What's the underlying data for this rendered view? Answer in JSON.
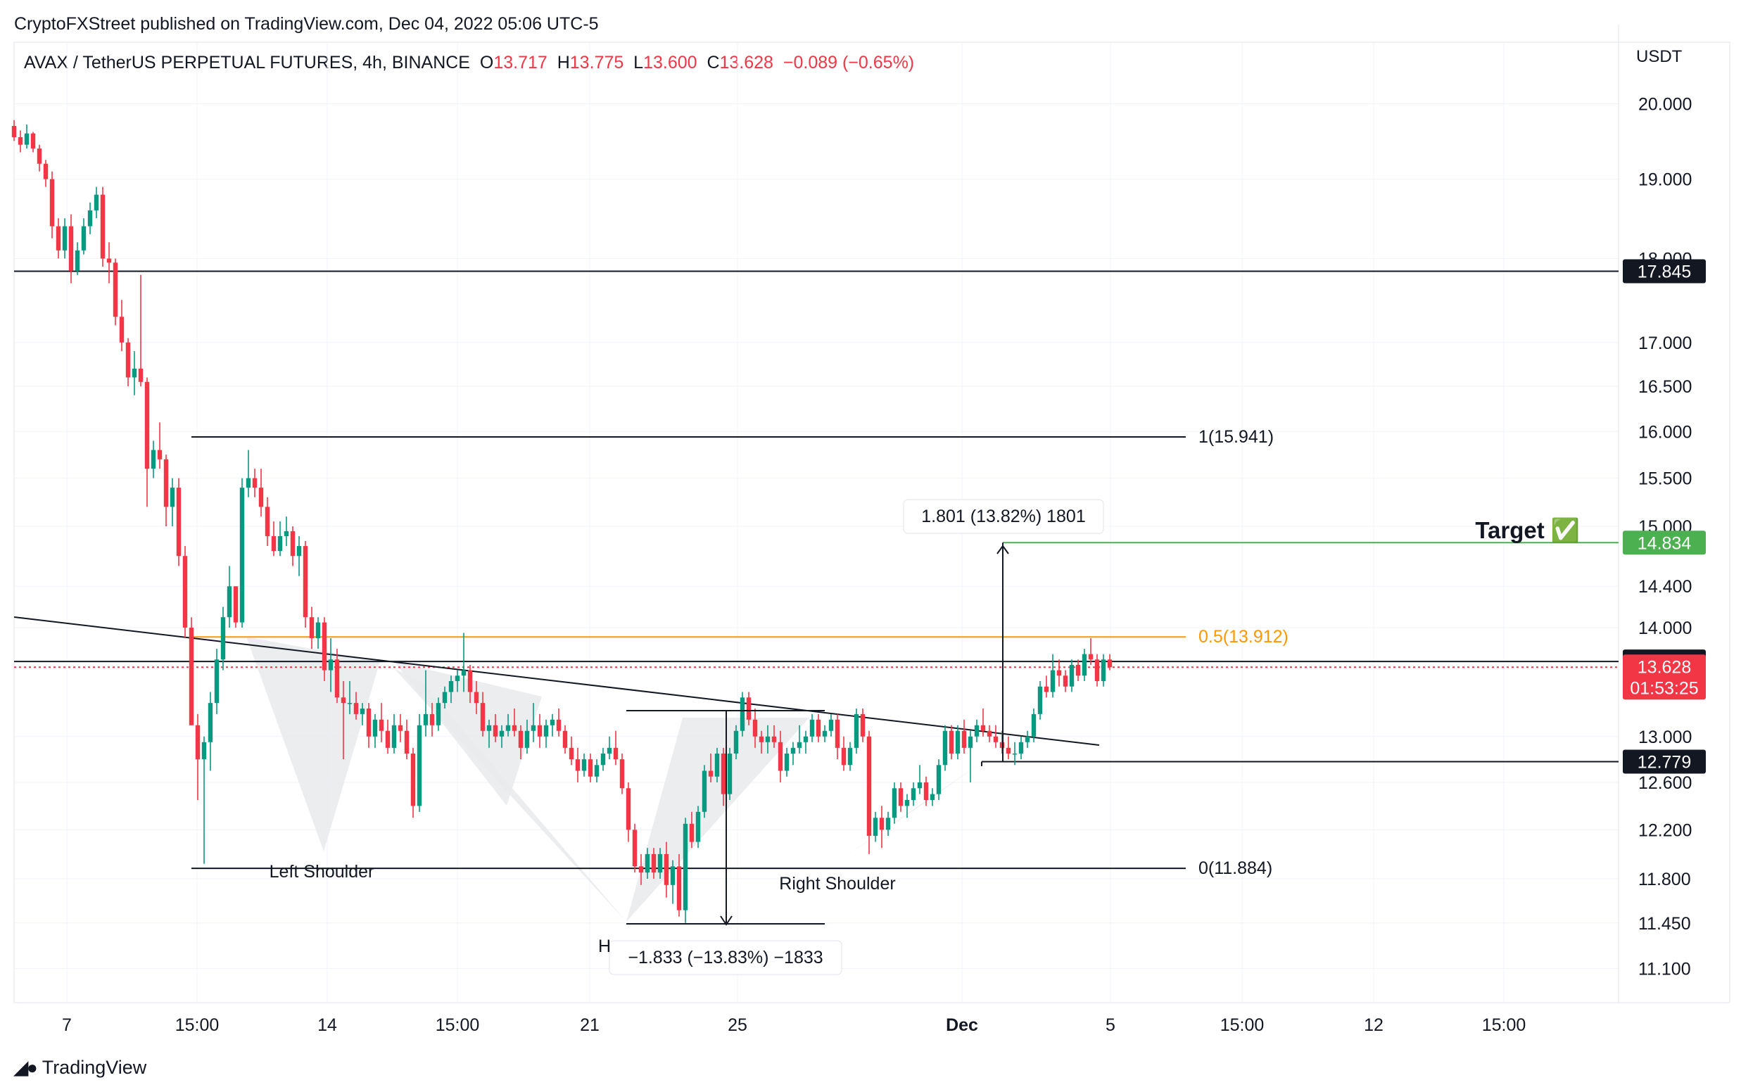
{
  "header": {
    "published": "CryptoFXStreet published on TradingView.com, Dec 04, 2022 05:06 UTC-5"
  },
  "symbol": {
    "name": "AVAX / TetherUS PERPETUAL FUTURES, 4h, BINANCE",
    "open_label": "O",
    "open": "13.717",
    "high_label": "H",
    "high": "13.775",
    "low_label": "L",
    "low": "13.600",
    "close_label": "C",
    "close": "13.628",
    "change": "−0.089 (−0.65%)"
  },
  "footer": {
    "brand": "TradingView",
    "logo": "tradingview-logo-icon"
  },
  "colors": {
    "up": "#089981",
    "down": "#f23645",
    "fib": "#ff9800",
    "target": "#4caf50",
    "line": "#131722",
    "shade": "#e9eaec",
    "grid": "#f0f3fa"
  },
  "chart_data": {
    "type": "candlestick",
    "currency": "USDT",
    "title": "AVAX / TetherUS PERPETUAL FUTURES, 4h, BINANCE",
    "x_ticks": [
      "7",
      "15:00",
      "14",
      "15:00",
      "21",
      "25",
      "Dec",
      "5",
      "15:00",
      "12",
      "15:00"
    ],
    "y_ticks": [
      "20.000",
      "19.000",
      "18.000",
      "17.000",
      "16.500",
      "16.000",
      "15.500",
      "15.000",
      "14.400",
      "14.000",
      "13.000",
      "12.600",
      "12.200",
      "11.800",
      "11.450",
      "11.100"
    ],
    "y_tick_values": [
      20.0,
      19.0,
      18.0,
      17.0,
      16.5,
      16.0,
      15.5,
      15.0,
      14.4,
      14.0,
      13.0,
      12.6,
      12.2,
      11.8,
      11.45,
      11.1
    ],
    "log_scale": true,
    "price_labels": [
      {
        "value": 17.845,
        "text": "17.845",
        "style": "dark"
      },
      {
        "value": 14.834,
        "text": "14.834",
        "style": "green"
      },
      {
        "value": 13.681,
        "text": "13.681",
        "style": "dark"
      },
      {
        "value": 13.628,
        "text": "13.628",
        "style": "red",
        "countdown": "01:53:25"
      },
      {
        "value": 12.779,
        "text": "12.779",
        "style": "dark"
      }
    ],
    "levels": [
      {
        "name": "resistance-17845",
        "value": 17.845,
        "style": "black"
      },
      {
        "name": "fib-1",
        "value": 15.941,
        "label": "1(15.941)",
        "style": "black"
      },
      {
        "name": "target",
        "value": 14.834,
        "style": "green"
      },
      {
        "name": "fib-0.5",
        "value": 13.912,
        "label": "0.5(13.912)",
        "style": "orange"
      },
      {
        "name": "current-price",
        "value": 13.681,
        "style": "black"
      },
      {
        "name": "neckline-base",
        "value": 12.779,
        "style": "black"
      },
      {
        "name": "fib-0",
        "value": 11.884,
        "label": "0(11.884)",
        "style": "black"
      }
    ],
    "annotations": {
      "left_shoulder": "Left Shoulder",
      "right_shoulder": "Right Shoulder",
      "head": "H",
      "measure_down": "−1.833 (−13.83%) −1833",
      "measure_up": "1.801 (13.82%) 1801",
      "target": "Target ✅"
    },
    "candles": [
      [
        19.7,
        19.78,
        19.5,
        19.55
      ],
      [
        19.55,
        19.64,
        19.35,
        19.45
      ],
      [
        19.45,
        19.72,
        19.4,
        19.6
      ],
      [
        19.6,
        19.62,
        19.35,
        19.4
      ],
      [
        19.4,
        19.45,
        19.1,
        19.2
      ],
      [
        19.2,
        19.25,
        18.9,
        19.0
      ],
      [
        19.0,
        19.1,
        18.25,
        18.4
      ],
      [
        18.4,
        18.5,
        18.0,
        18.1
      ],
      [
        18.1,
        18.5,
        18.0,
        18.4
      ],
      [
        18.4,
        18.55,
        17.7,
        17.85
      ],
      [
        17.85,
        18.2,
        17.8,
        18.1
      ],
      [
        18.1,
        18.5,
        18.05,
        18.4
      ],
      [
        18.4,
        18.7,
        18.3,
        18.6
      ],
      [
        18.6,
        18.9,
        18.5,
        18.8
      ],
      [
        18.8,
        18.9,
        17.9,
        18.0
      ],
      [
        18.0,
        18.2,
        17.7,
        17.95
      ],
      [
        17.95,
        18.0,
        17.2,
        17.3
      ],
      [
        17.3,
        17.5,
        16.9,
        17.0
      ],
      [
        17.0,
        17.05,
        16.5,
        16.6
      ],
      [
        16.6,
        16.9,
        16.4,
        16.7
      ],
      [
        16.7,
        17.8,
        16.5,
        16.55
      ],
      [
        16.55,
        16.6,
        15.2,
        15.6
      ],
      [
        15.6,
        15.9,
        15.5,
        15.8
      ],
      [
        15.8,
        16.1,
        15.6,
        15.7
      ],
      [
        15.7,
        15.75,
        15.0,
        15.2
      ],
      [
        15.2,
        15.5,
        15.0,
        15.4
      ],
      [
        15.4,
        15.5,
        14.6,
        14.7
      ],
      [
        14.7,
        14.8,
        13.9,
        14.0
      ],
      [
        14.0,
        14.1,
        13.1,
        13.1
      ],
      [
        13.1,
        13.2,
        12.45,
        12.8
      ],
      [
        12.8,
        13.0,
        11.92,
        12.95
      ],
      [
        12.95,
        13.4,
        12.7,
        13.3
      ],
      [
        13.3,
        13.8,
        13.2,
        13.7
      ],
      [
        13.7,
        14.2,
        13.6,
        14.1
      ],
      [
        14.1,
        14.6,
        14.0,
        14.4
      ],
      [
        14.4,
        14.4,
        14.0,
        14.05
      ],
      [
        14.05,
        15.5,
        14.0,
        15.4
      ],
      [
        15.4,
        15.8,
        15.3,
        15.5
      ],
      [
        15.5,
        15.6,
        15.3,
        15.4
      ],
      [
        15.4,
        15.6,
        15.1,
        15.2
      ],
      [
        15.2,
        15.3,
        14.8,
        14.9
      ],
      [
        14.9,
        15.05,
        14.7,
        14.75
      ],
      [
        14.75,
        15.05,
        14.7,
        14.9
      ],
      [
        14.9,
        15.1,
        14.8,
        14.95
      ],
      [
        14.95,
        15.0,
        14.6,
        14.7
      ],
      [
        14.7,
        14.9,
        14.5,
        14.8
      ],
      [
        14.8,
        14.85,
        14.0,
        14.1
      ],
      [
        14.1,
        14.2,
        13.8,
        13.9
      ],
      [
        13.9,
        14.1,
        13.8,
        14.05
      ],
      [
        14.05,
        14.1,
        13.5,
        13.6
      ],
      [
        13.6,
        13.9,
        13.4,
        13.7
      ],
      [
        13.7,
        13.8,
        13.3,
        13.35
      ],
      [
        13.35,
        13.5,
        12.8,
        13.3
      ],
      [
        13.3,
        13.5,
        13.2,
        13.3
      ],
      [
        13.3,
        13.4,
        13.15,
        13.2
      ],
      [
        13.2,
        13.3,
        13.1,
        13.25
      ],
      [
        13.25,
        13.3,
        12.9,
        13.0
      ],
      [
        13.0,
        13.2,
        12.9,
        13.15
      ],
      [
        13.15,
        13.3,
        12.95,
        13.05
      ],
      [
        13.05,
        13.15,
        12.85,
        12.9
      ],
      [
        12.9,
        13.2,
        12.85,
        13.1
      ],
      [
        13.1,
        13.2,
        12.95,
        13.05
      ],
      [
        13.05,
        13.15,
        12.8,
        12.85
      ],
      [
        12.85,
        12.9,
        12.3,
        12.4
      ],
      [
        12.4,
        13.2,
        12.35,
        13.1
      ],
      [
        13.1,
        13.6,
        13.0,
        13.2
      ],
      [
        13.2,
        13.3,
        13.0,
        13.1
      ],
      [
        13.1,
        13.35,
        13.05,
        13.3
      ],
      [
        13.3,
        13.45,
        13.25,
        13.4
      ],
      [
        13.4,
        13.55,
        13.3,
        13.5
      ],
      [
        13.5,
        13.6,
        13.4,
        13.55
      ],
      [
        13.55,
        13.95,
        13.4,
        13.6
      ],
      [
        13.6,
        13.65,
        13.3,
        13.4
      ],
      [
        13.4,
        13.5,
        13.2,
        13.3
      ],
      [
        13.3,
        13.4,
        13.0,
        13.05
      ],
      [
        13.05,
        13.15,
        12.9,
        13.1
      ],
      [
        13.1,
        13.2,
        12.95,
        13.0
      ],
      [
        13.0,
        13.1,
        12.9,
        13.05
      ],
      [
        13.05,
        13.2,
        13.0,
        13.1
      ],
      [
        13.1,
        13.25,
        13.0,
        13.05
      ],
      [
        13.05,
        13.1,
        12.8,
        12.9
      ],
      [
        12.9,
        13.15,
        12.85,
        13.05
      ],
      [
        13.05,
        13.3,
        12.95,
        13.1
      ],
      [
        13.1,
        13.2,
        12.9,
        13.0
      ],
      [
        13.0,
        13.15,
        12.9,
        13.1
      ],
      [
        13.1,
        13.2,
        13.0,
        13.15
      ],
      [
        13.15,
        13.25,
        13.0,
        13.05
      ],
      [
        13.05,
        13.1,
        12.85,
        12.9
      ],
      [
        12.9,
        13.0,
        12.75,
        12.8
      ],
      [
        12.8,
        12.9,
        12.6,
        12.7
      ],
      [
        12.7,
        12.85,
        12.65,
        12.8
      ],
      [
        12.8,
        12.85,
        12.6,
        12.65
      ],
      [
        12.65,
        12.8,
        12.6,
        12.75
      ],
      [
        12.75,
        12.9,
        12.7,
        12.85
      ],
      [
        12.85,
        13.0,
        12.8,
        12.9
      ],
      [
        12.9,
        13.05,
        12.75,
        12.8
      ],
      [
        12.8,
        12.85,
        12.5,
        12.55
      ],
      [
        12.55,
        12.6,
        12.1,
        12.2
      ],
      [
        12.2,
        12.25,
        11.85,
        11.9
      ],
      [
        11.9,
        12.0,
        11.75,
        11.85
      ],
      [
        11.85,
        12.05,
        11.8,
        12.0
      ],
      [
        12.0,
        12.05,
        11.8,
        11.85
      ],
      [
        11.85,
        12.05,
        11.8,
        12.0
      ],
      [
        12.0,
        12.1,
        11.65,
        11.75
      ],
      [
        11.75,
        11.95,
        11.6,
        11.9
      ],
      [
        11.9,
        12.0,
        11.5,
        11.55
      ],
      [
        11.55,
        12.3,
        11.45,
        12.25
      ],
      [
        12.25,
        12.35,
        12.05,
        12.1
      ],
      [
        12.1,
        12.4,
        12.05,
        12.35
      ],
      [
        12.35,
        12.75,
        12.3,
        12.7
      ],
      [
        12.7,
        12.85,
        12.6,
        12.65
      ],
      [
        12.65,
        12.9,
        12.6,
        12.85
      ],
      [
        12.85,
        12.9,
        12.4,
        12.5
      ],
      [
        12.5,
        12.9,
        12.45,
        12.85
      ],
      [
        12.85,
        13.1,
        12.8,
        13.05
      ],
      [
        13.05,
        13.4,
        13.0,
        13.35
      ],
      [
        13.35,
        13.4,
        13.1,
        13.15
      ],
      [
        13.15,
        13.25,
        12.9,
        13.0
      ],
      [
        13.0,
        13.05,
        12.85,
        12.95
      ],
      [
        12.95,
        13.1,
        12.85,
        13.0
      ],
      [
        13.0,
        13.1,
        12.9,
        12.95
      ],
      [
        12.95,
        13.05,
        12.6,
        12.7
      ],
      [
        12.7,
        12.9,
        12.65,
        12.85
      ],
      [
        12.85,
        12.95,
        12.75,
        12.9
      ],
      [
        12.9,
        13.1,
        12.85,
        12.95
      ],
      [
        12.95,
        13.05,
        12.85,
        13.0
      ],
      [
        13.0,
        13.2,
        12.95,
        13.15
      ],
      [
        13.15,
        13.2,
        12.95,
        13.0
      ],
      [
        13.0,
        13.1,
        12.95,
        13.05
      ],
      [
        13.05,
        13.2,
        13.0,
        13.15
      ],
      [
        13.15,
        13.2,
        12.8,
        12.9
      ],
      [
        12.9,
        13.0,
        12.7,
        12.75
      ],
      [
        12.75,
        12.95,
        12.7,
        12.9
      ],
      [
        12.9,
        13.25,
        12.85,
        13.2
      ],
      [
        13.2,
        13.25,
        12.95,
        13.0
      ],
      [
        13.0,
        13.05,
        12.0,
        12.15
      ],
      [
        12.15,
        12.35,
        12.1,
        12.3
      ],
      [
        12.3,
        12.4,
        12.05,
        12.2
      ],
      [
        12.2,
        12.35,
        12.15,
        12.3
      ],
      [
        12.3,
        12.6,
        12.25,
        12.55
      ],
      [
        12.55,
        12.6,
        12.35,
        12.4
      ],
      [
        12.4,
        12.5,
        12.3,
        12.45
      ],
      [
        12.45,
        12.6,
        12.4,
        12.55
      ],
      [
        12.55,
        12.75,
        12.5,
        12.6
      ],
      [
        12.6,
        12.65,
        12.4,
        12.45
      ],
      [
        12.45,
        12.55,
        12.4,
        12.5
      ],
      [
        12.5,
        12.8,
        12.45,
        12.75
      ],
      [
        12.75,
        13.1,
        12.7,
        13.05
      ],
      [
        13.05,
        13.1,
        12.8,
        12.85
      ],
      [
        12.85,
        13.1,
        12.8,
        13.05
      ],
      [
        13.05,
        13.15,
        12.85,
        12.9
      ],
      [
        12.9,
        13.05,
        12.6,
        13.0
      ],
      [
        13.0,
        13.15,
        12.95,
        13.1
      ],
      [
        13.1,
        13.25,
        13.0,
        13.05
      ],
      [
        13.05,
        13.1,
        12.95,
        13.0
      ],
      [
        13.0,
        13.1,
        12.9,
        12.95
      ],
      [
        12.95,
        13.05,
        12.85,
        12.9
      ],
      [
        12.9,
        13.0,
        12.8,
        12.85
      ],
      [
        12.85,
        12.95,
        12.75,
        12.85
      ],
      [
        12.85,
        13.0,
        12.8,
        12.95
      ],
      [
        12.95,
        13.05,
        12.9,
        13.0
      ],
      [
        13.0,
        13.25,
        12.95,
        13.2
      ],
      [
        13.2,
        13.5,
        13.15,
        13.45
      ],
      [
        13.45,
        13.55,
        13.35,
        13.4
      ],
      [
        13.4,
        13.75,
        13.35,
        13.6
      ],
      [
        13.6,
        13.7,
        13.45,
        13.55
      ],
      [
        13.55,
        13.6,
        13.4,
        13.45
      ],
      [
        13.45,
        13.7,
        13.4,
        13.65
      ],
      [
        13.65,
        13.7,
        13.5,
        13.55
      ],
      [
        13.55,
        13.8,
        13.5,
        13.75
      ],
      [
        13.75,
        13.9,
        13.65,
        13.7
      ],
      [
        13.7,
        13.75,
        13.45,
        13.5
      ],
      [
        13.5,
        13.75,
        13.45,
        13.7
      ],
      [
        13.7,
        13.75,
        13.6,
        13.628
      ]
    ]
  }
}
